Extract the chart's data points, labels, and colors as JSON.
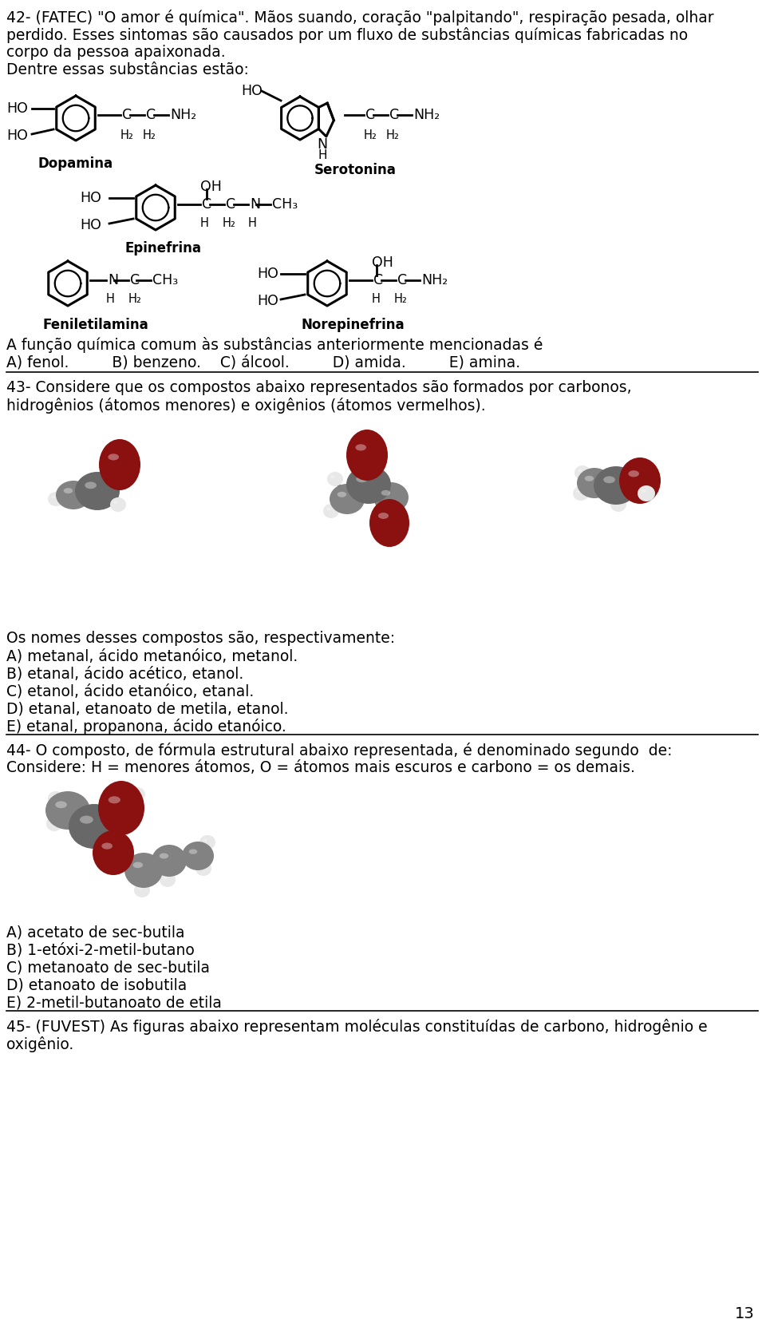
{
  "bg_color": "#ffffff",
  "text_color": "#000000",
  "page_number": "13",
  "q42_l1": "42- (FATEC) \"O amor é química\". Mãos suando, coração \"palpitando\", respiração pesada, olhar",
  "q42_l2": "perdido. Esses sintomas são causados por um fluxo de substâncias químicas fabricadas no",
  "q42_l3": "corpo da pessoa apaixonada.",
  "q42_l4": "Dentre essas substâncias estão:",
  "q42_ans1": "A função química comum às substâncias anteriormente mencionadas é",
  "q42_ans2": "A) fenol.         B) benzeno.    C) álcool.         D) amida.         E) amina.",
  "q43_l1": "43- Considere que os compostos abaixo representados são formados por carbonos,",
  "q43_l2": "hidrogênios (átomos menores) e oxigênios (átomos vermelhos).",
  "q43_ans1": "Os nomes desses compostos são, respectivamente:",
  "q43_ans2": "A) metanal, ácido metanóico, metanol.",
  "q43_ans3": "B) etanal, ácido acético, etanol.",
  "q43_ans4": "C) etanol, ácido etanóico, etanal.",
  "q43_ans5": "D) etanal, etanoato de metila, etanol.",
  "q43_ans6": "E) etanal, propanona, ácido etanóico.",
  "q44_l1": "44- O composto, de fórmula estrutural abaixo representada, é denominado segundo  de:",
  "q44_l2": "Considere: H = menores átomos, O = átomos mais escuros e carbono = os demais.",
  "q44_ans1": "A) acetato de sec-butila",
  "q44_ans2": "B) 1-etóxi-2-metil-butano",
  "q44_ans3": "C) metanoato de sec-butila",
  "q44_ans4": "D) etanoato de isobutila",
  "q44_ans5": "E) 2-metil-butanoato de etila",
  "q45_l1": "45- (FUVEST) As figuras abaixo representam moléculas constituídas de carbono, hidrogênio e",
  "q45_l2": "oxigênio.",
  "fs": 13.5,
  "fs_struct": 12.5
}
